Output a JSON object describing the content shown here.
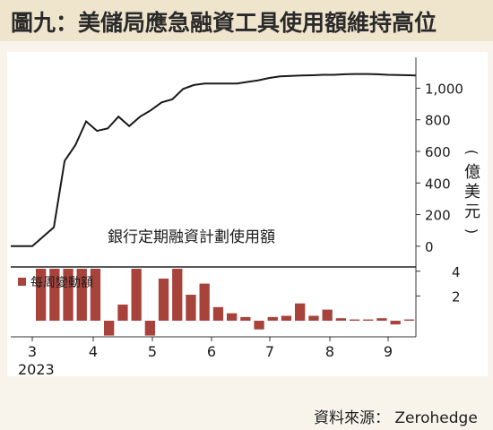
{
  "title": "圖九：美儲局應急融資工具使用額維持高位",
  "source": "資料來源： Zerohedge",
  "colors": {
    "line": "#1a1a1a",
    "bar": "#a8433c",
    "panel": "#ffffff",
    "header": "#efe4cc",
    "background": "#f8f4ec"
  },
  "chart_data": [
    {
      "type": "line",
      "series": [
        {
          "name": "銀行定期融資計劃使用額",
          "x": [
            0,
            0.5,
            1.0,
            1.25,
            1.5,
            1.75,
            2.0,
            2.25,
            2.5,
            2.75,
            3.0,
            3.25,
            3.5,
            3.75,
            4.0,
            4.25,
            4.5,
            4.75,
            5.0,
            5.25,
            5.5,
            5.75,
            6.0,
            6.25,
            6.5,
            6.75,
            7.0,
            7.25,
            7.5,
            7.75,
            8.0,
            8.25,
            8.5,
            8.75,
            9.0,
            9.25,
            9.4
          ],
          "values": [
            0,
            0,
            120,
            540,
            640,
            790,
            730,
            745,
            820,
            760,
            820,
            860,
            910,
            930,
            995,
            1020,
            1030,
            1030,
            1030,
            1030,
            1040,
            1050,
            1065,
            1075,
            1078,
            1080,
            1082,
            1085,
            1085,
            1088,
            1090,
            1090,
            1088,
            1085,
            1083,
            1082,
            1080
          ]
        }
      ],
      "xlim": [
        0,
        9.4
      ],
      "x_ticks": [
        "3",
        "4",
        "5",
        "6",
        "7",
        "8",
        "9"
      ],
      "x_tick_positions": [
        0.8,
        2.8,
        4.8,
        6.8,
        8.8,
        10.8,
        12.8
      ],
      "x_year_label": "2023",
      "ylim": [
        -120,
        1150
      ],
      "y_ticks": [
        0,
        200,
        400,
        600,
        800,
        1000
      ],
      "y_tick_labels": [
        "0",
        "200",
        "400",
        "600",
        "800",
        "1,000"
      ],
      "ylabel": "(億美元)",
      "annotation": "銀行定期融資計劃使用額"
    },
    {
      "type": "bar",
      "series": [
        {
          "name": "每周變動額",
          "values": [
            4.2,
            4.2,
            4.2,
            4.2,
            4.2,
            -1.2,
            1.3,
            4.2,
            -1.2,
            3.4,
            4.2,
            2.1,
            3.0,
            1.1,
            0.6,
            0.3,
            -0.7,
            0.3,
            0.4,
            1.4,
            0.4,
            0.9,
            0.2,
            0.1,
            0.1,
            0.2,
            -0.3,
            0.1
          ]
        }
      ],
      "ylim": [
        -1.3,
        4.2
      ],
      "y_ticks": [
        2,
        4
      ],
      "y_tick_labels": [
        "2",
        "4"
      ]
    }
  ]
}
